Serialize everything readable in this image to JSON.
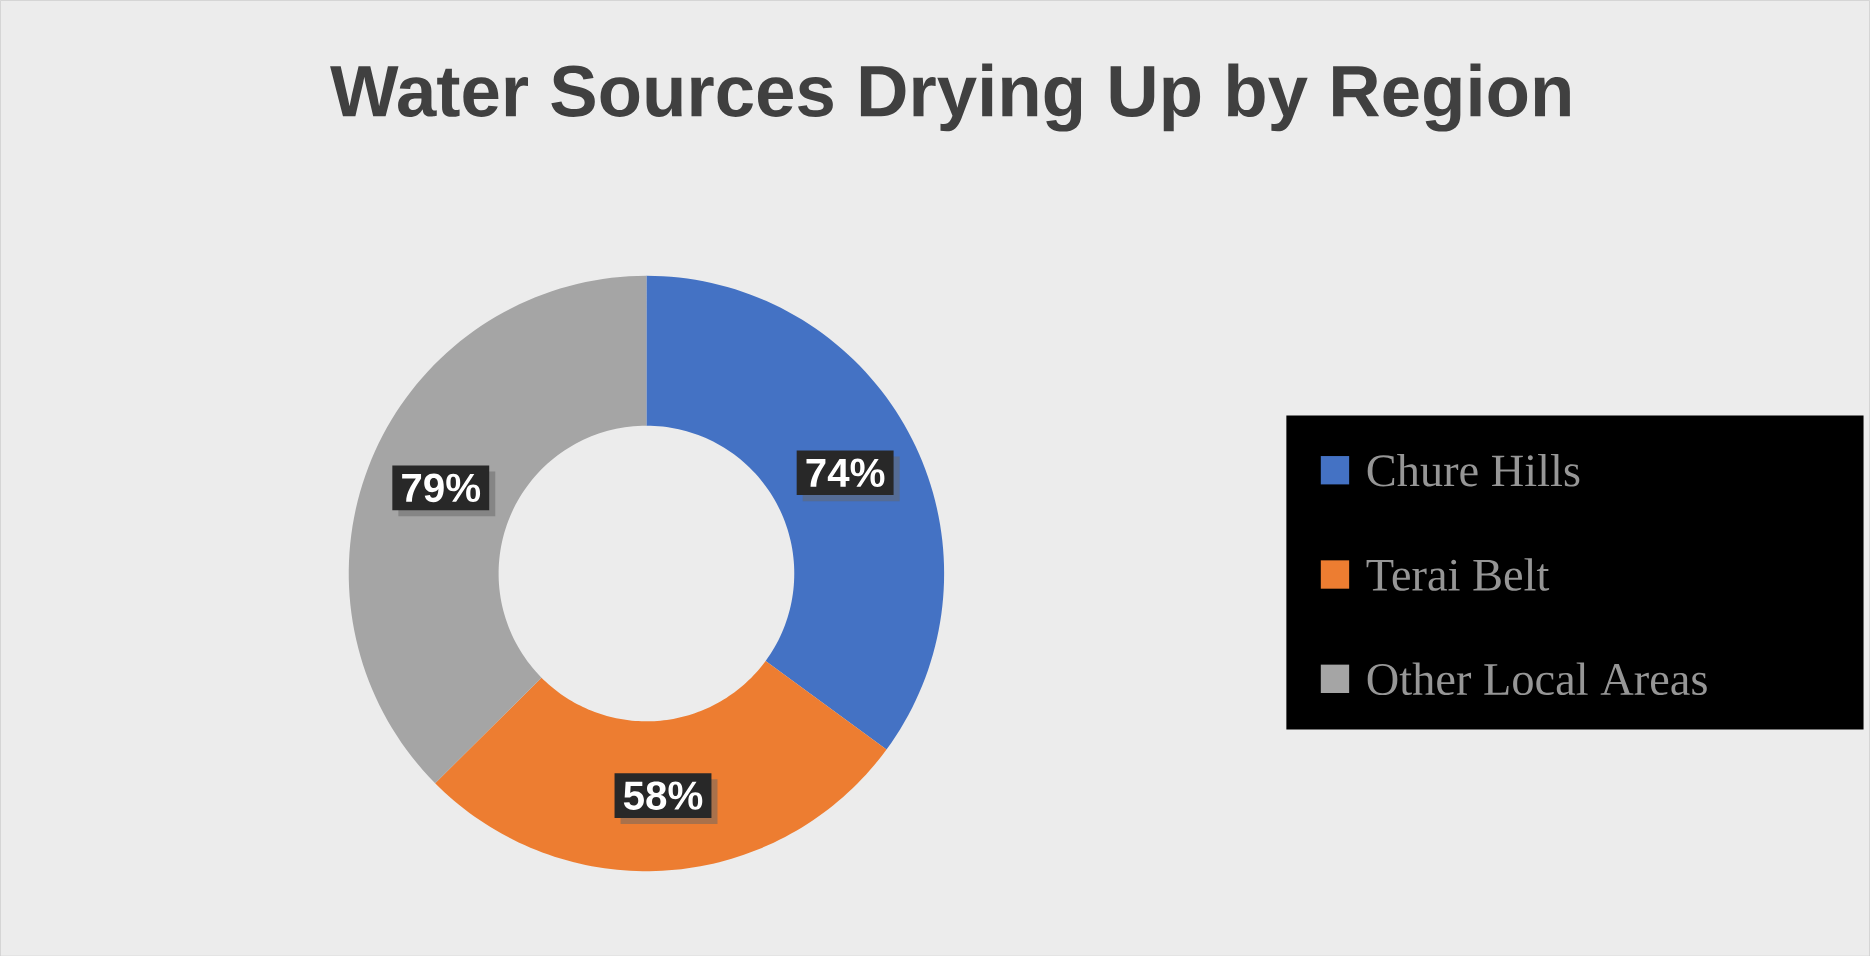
{
  "chart_data": {
    "type": "donut",
    "title": "Water Sources Drying Up by Region",
    "categories": [
      "Chure Hills",
      "Terai Belt",
      "Other Local Areas"
    ],
    "values": [
      74,
      58,
      79
    ],
    "value_labels": [
      "74%",
      "58%",
      "79%"
    ],
    "colors": [
      "#4472c4",
      "#ed7d31",
      "#a5a5a5"
    ],
    "legend": "right"
  }
}
